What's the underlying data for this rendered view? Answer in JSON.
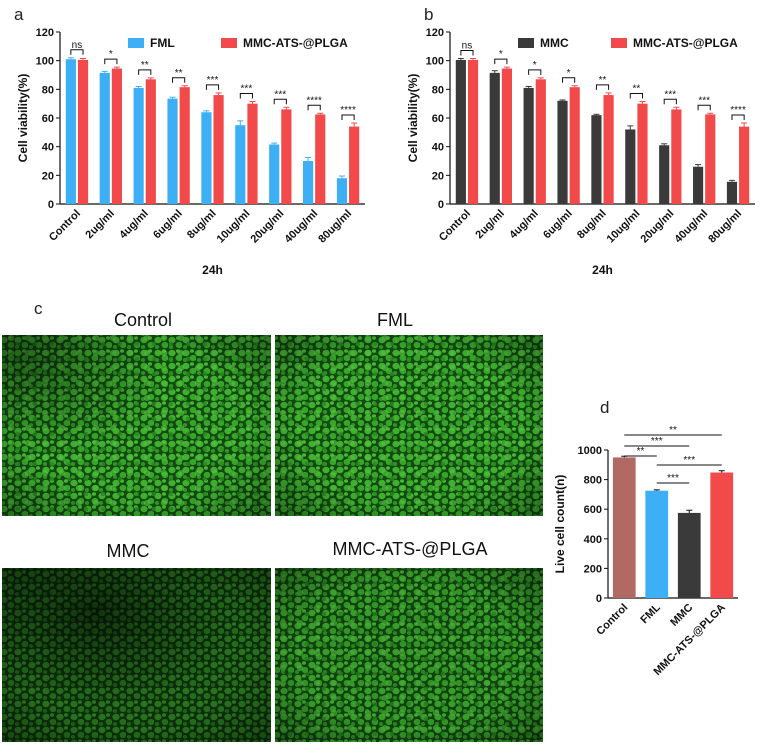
{
  "colors": {
    "blue": "#3db0f5",
    "red": "#f24a4a",
    "dark": "#3a3a3a",
    "brown": "#b06a63",
    "green_cells": "#2f9a2a",
    "green_dark": "#0e330d"
  },
  "panels": {
    "a": "a",
    "b": "b",
    "c": "c",
    "d": "d"
  },
  "image_labels": [
    "Control",
    "FML",
    "MMC",
    "MMC-ATS-@PLGA"
  ],
  "chart_data": [
    {
      "id": "a",
      "type": "bar",
      "ylabel": "Cell viability(%)",
      "xlabel": "24h",
      "ylim": [
        0,
        120
      ],
      "yticks": [
        0,
        20,
        40,
        60,
        80,
        100,
        120
      ],
      "categories": [
        "Control",
        "2ug/ml",
        "4ug/ml",
        "6ug/ml",
        "8ug/ml",
        "10ug/ml",
        "20ug/ml",
        "40ug/ml",
        "80ug/ml"
      ],
      "series": [
        {
          "name": "FML",
          "color": "#3db0f5",
          "values": [
            101,
            91.5,
            81,
            73.5,
            64,
            55,
            41.5,
            30,
            18
          ],
          "errors": [
            1,
            1,
            1,
            1,
            1,
            3,
            1,
            2.5,
            1.5
          ]
        },
        {
          "name": "MMC-ATS-@PLGA",
          "color": "#f24a4a",
          "values": [
            100.5,
            94.5,
            87,
            81.5,
            76,
            70,
            66,
            62.5,
            54
          ],
          "errors": [
            1,
            1,
            1,
            1,
            1.5,
            1.5,
            1.5,
            0.8,
            2.5
          ]
        }
      ],
      "significance": [
        "ns",
        "*",
        "**",
        "**",
        "***",
        "***",
        "***",
        "****",
        "****"
      ],
      "legend_position": "top"
    },
    {
      "id": "b",
      "type": "bar",
      "ylabel": "Cell viability(%)",
      "xlabel": "24h",
      "ylim": [
        0,
        120
      ],
      "yticks": [
        0,
        20,
        40,
        60,
        80,
        100,
        120
      ],
      "categories": [
        "Control",
        "2ug/ml",
        "4ug/ml",
        "6ug/ml",
        "8ug/ml",
        "10ug/ml",
        "20ug/ml",
        "40ug/ml",
        "80ug/ml"
      ],
      "series": [
        {
          "name": "MMC",
          "color": "#3a3a3a",
          "values": [
            100.5,
            91.5,
            81,
            72,
            62,
            52,
            41,
            26,
            15.5
          ],
          "errors": [
            1,
            1.5,
            1,
            0.6,
            0.6,
            2.5,
            1,
            1.5,
            1
          ]
        },
        {
          "name": "MMC-ATS-@PLGA",
          "color": "#f24a4a",
          "values": [
            100.5,
            94.5,
            87,
            81.5,
            76,
            70,
            66,
            62.5,
            54
          ],
          "errors": [
            1,
            1,
            1,
            1,
            1.5,
            1.5,
            1.5,
            0.8,
            2.5
          ]
        }
      ],
      "significance": [
        "ns",
        "*",
        "*",
        "*",
        "**",
        "**",
        "***",
        "***",
        "****"
      ],
      "legend_position": "top"
    },
    {
      "id": "d",
      "type": "bar",
      "ylabel": "Live cell count(n)",
      "ylim": [
        0,
        1000
      ],
      "yticks": [
        0,
        200,
        400,
        600,
        800,
        1000
      ],
      "categories": [
        "Control",
        "FML",
        "MMC",
        "MMC-ATS-@PLGA"
      ],
      "values": [
        950,
        725,
        575,
        848
      ],
      "errors": [
        8,
        6,
        18,
        12
      ],
      "bar_colors": [
        "#b06a63",
        "#3db0f5",
        "#3a3a3a",
        "#f24a4a"
      ],
      "comparisons": [
        {
          "from": 0,
          "to": 3,
          "label": "**"
        },
        {
          "from": 0,
          "to": 2,
          "label": "***"
        },
        {
          "from": 0,
          "to": 1,
          "label": "**"
        },
        {
          "from": 1,
          "to": 3,
          "label": "***"
        },
        {
          "from": 1,
          "to": 2,
          "label": "***"
        }
      ]
    }
  ]
}
